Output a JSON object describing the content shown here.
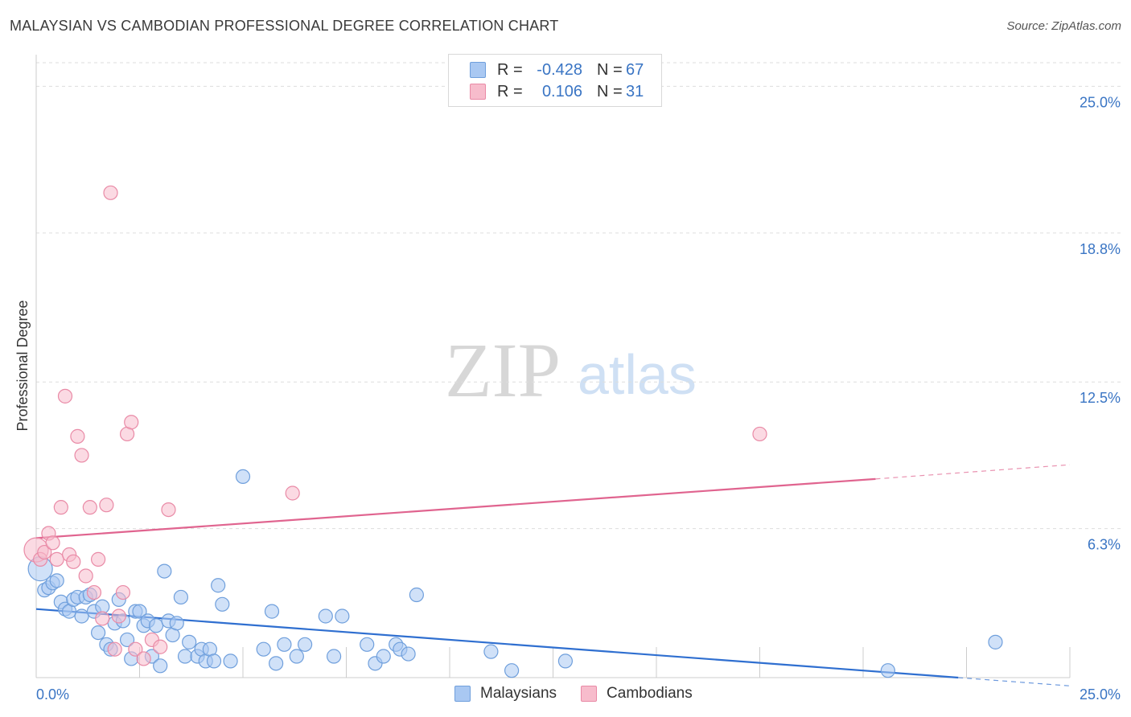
{
  "title": "MALAYSIAN VS CAMBODIAN PROFESSIONAL DEGREE CORRELATION CHART",
  "source": "Source: ZipAtlas.com",
  "watermark": {
    "zip": "ZIP",
    "atlas": "atlas"
  },
  "legend": {
    "rows": [
      {
        "r_label": "R =",
        "r_value": "-0.428",
        "n_label": "N =",
        "n_value": "67"
      },
      {
        "r_label": "R =",
        "r_value": "0.106",
        "n_label": "N =",
        "n_value": "31"
      }
    ]
  },
  "bottom_legend": [
    "Malaysians",
    "Cambodians"
  ],
  "colors": {
    "malaysian_fill": "#a9c8f2",
    "malaysian_stroke": "#6f9fdc",
    "malaysian_line": "#2f6fd0",
    "cambodian_fill": "#f7bccc",
    "cambodian_stroke": "#e98aa6",
    "cambodian_line": "#e0648f",
    "tick_label": "#3a75c4",
    "grid": "#dddddd",
    "axis": "#cccccc"
  },
  "chart_data": {
    "type": "scatter",
    "title": "MALAYSIAN VS CAMBODIAN PROFESSIONAL DEGREE CORRELATION CHART",
    "xlabel": "",
    "ylabel": "Professional Degree",
    "xlim": [
      0,
      25
    ],
    "ylim": [
      0,
      26
    ],
    "x_tick_labels": [
      "0.0%",
      "25.0%"
    ],
    "y_ticks": [
      6.3,
      12.5,
      18.8,
      25.0
    ],
    "y_tick_labels": [
      "6.3%",
      "12.5%",
      "18.8%",
      "25.0%"
    ],
    "series": [
      {
        "name": "Malaysians",
        "r": -0.428,
        "n": 67,
        "trend": {
          "x": [
            0,
            22.3
          ],
          "y": [
            2.9,
            0.0
          ],
          "dashed_x": [
            22.3,
            25
          ],
          "dashed_y": [
            0.0,
            -0.35
          ]
        },
        "points": [
          [
            0.1,
            4.6
          ],
          [
            0.2,
            3.7
          ],
          [
            0.3,
            3.8
          ],
          [
            0.4,
            4.0
          ],
          [
            0.5,
            4.1
          ],
          [
            0.6,
            3.2
          ],
          [
            0.7,
            2.9
          ],
          [
            0.8,
            2.8
          ],
          [
            0.9,
            3.3
          ],
          [
            1.0,
            3.4
          ],
          [
            1.1,
            2.6
          ],
          [
            1.2,
            3.4
          ],
          [
            1.3,
            3.5
          ],
          [
            1.4,
            2.8
          ],
          [
            1.5,
            1.9
          ],
          [
            1.6,
            3.0
          ],
          [
            1.7,
            1.4
          ],
          [
            1.8,
            1.2
          ],
          [
            1.9,
            2.3
          ],
          [
            2.0,
            3.3
          ],
          [
            2.1,
            2.4
          ],
          [
            2.2,
            1.6
          ],
          [
            2.3,
            0.8
          ],
          [
            2.4,
            2.8
          ],
          [
            2.5,
            2.8
          ],
          [
            2.6,
            2.2
          ],
          [
            2.7,
            2.4
          ],
          [
            2.8,
            0.9
          ],
          [
            2.9,
            2.2
          ],
          [
            3.0,
            0.5
          ],
          [
            3.1,
            4.5
          ],
          [
            3.2,
            2.4
          ],
          [
            3.3,
            1.8
          ],
          [
            3.4,
            2.3
          ],
          [
            3.5,
            3.4
          ],
          [
            3.6,
            0.9
          ],
          [
            3.7,
            1.5
          ],
          [
            3.9,
            0.9
          ],
          [
            4.0,
            1.2
          ],
          [
            4.1,
            0.7
          ],
          [
            4.2,
            1.2
          ],
          [
            4.3,
            0.7
          ],
          [
            4.4,
            3.9
          ],
          [
            4.5,
            3.1
          ],
          [
            4.7,
            0.7
          ],
          [
            5.0,
            8.5
          ],
          [
            5.5,
            1.2
          ],
          [
            5.7,
            2.8
          ],
          [
            5.8,
            0.6
          ],
          [
            6.0,
            1.4
          ],
          [
            6.3,
            0.9
          ],
          [
            6.5,
            1.4
          ],
          [
            7.0,
            2.6
          ],
          [
            7.4,
            2.6
          ],
          [
            7.2,
            0.9
          ],
          [
            8.0,
            1.4
          ],
          [
            8.2,
            0.6
          ],
          [
            8.4,
            0.9
          ],
          [
            8.7,
            1.4
          ],
          [
            8.8,
            1.2
          ],
          [
            9.0,
            1.0
          ],
          [
            9.2,
            3.5
          ],
          [
            11.0,
            1.1
          ],
          [
            11.5,
            0.3
          ],
          [
            12.8,
            0.7
          ],
          [
            20.6,
            0.3
          ],
          [
            23.2,
            1.5
          ]
        ]
      },
      {
        "name": "Cambodians",
        "r": 0.106,
        "n": 31,
        "trend": {
          "x": [
            0,
            20.3
          ],
          "y": [
            5.9,
            8.4
          ],
          "dashed_x": [
            20.3,
            25
          ],
          "dashed_y": [
            8.4,
            9.0
          ]
        },
        "points": [
          [
            0.0,
            5.4
          ],
          [
            0.1,
            5.0
          ],
          [
            0.2,
            5.3
          ],
          [
            0.3,
            6.1
          ],
          [
            0.4,
            5.7
          ],
          [
            0.5,
            5.0
          ],
          [
            0.6,
            7.2
          ],
          [
            0.7,
            11.9
          ],
          [
            0.8,
            5.2
          ],
          [
            0.9,
            4.9
          ],
          [
            1.0,
            10.2
          ],
          [
            1.1,
            9.4
          ],
          [
            1.2,
            4.3
          ],
          [
            1.3,
            7.2
          ],
          [
            1.4,
            3.6
          ],
          [
            1.5,
            5.0
          ],
          [
            1.6,
            2.5
          ],
          [
            1.7,
            7.3
          ],
          [
            1.8,
            20.5
          ],
          [
            1.9,
            1.2
          ],
          [
            2.0,
            2.6
          ],
          [
            2.1,
            3.6
          ],
          [
            2.2,
            10.3
          ],
          [
            2.3,
            10.8
          ],
          [
            2.4,
            1.2
          ],
          [
            2.6,
            0.8
          ],
          [
            2.8,
            1.6
          ],
          [
            3.0,
            1.3
          ],
          [
            3.2,
            7.1
          ],
          [
            6.2,
            7.8
          ],
          [
            17.5,
            10.3
          ]
        ]
      }
    ]
  }
}
